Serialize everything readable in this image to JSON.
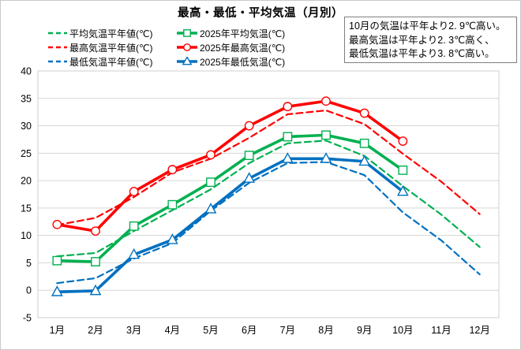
{
  "title": "最高・最低・平均気温（月別）",
  "annotation": {
    "line1": "10月の気温は平年より2. 9℃高い。",
    "line2": "最高気温は平年より2. 3℃高く、",
    "line3": "最低気温は平年より3. 8℃高い。"
  },
  "legend": {
    "items": [
      {
        "label": "平均気温平年値(℃)",
        "color": "#00B050",
        "style": "dashed",
        "marker": "none"
      },
      {
        "label": "2025年平均気温(℃)",
        "color": "#00B050",
        "style": "solid",
        "marker": "square"
      },
      {
        "label": "最高気温平年値(℃)",
        "color": "#FF0000",
        "style": "dashed",
        "marker": "none"
      },
      {
        "label": "2025年最高気温(℃)",
        "color": "#FF0000",
        "style": "solid",
        "marker": "circle"
      },
      {
        "label": "最低気温平年値(℃)",
        "color": "#0070C0",
        "style": "dashed",
        "marker": "none"
      },
      {
        "label": "2025年最低気温(℃)",
        "color": "#0070C0",
        "style": "solid",
        "marker": "triangle"
      }
    ]
  },
  "colors": {
    "average": "#00B050",
    "maximum": "#FF0000",
    "minimum": "#0070C0",
    "gridline": "#d6d6d6"
  },
  "chart_data": {
    "type": "line",
    "title": "最高・最低・平均気温（月別）",
    "categories": [
      "1月",
      "2月",
      "3月",
      "4月",
      "5月",
      "6月",
      "7月",
      "8月",
      "9月",
      "10月",
      "11月",
      "12月"
    ],
    "xlabel": "",
    "ylabel": "",
    "ylim": [
      -5,
      40
    ],
    "y_ticks": [
      40,
      35,
      30,
      25,
      20,
      15,
      10,
      5,
      0,
      -5
    ],
    "grid": "horizontal",
    "legend_position": "top",
    "series": [
      {
        "name": "平均気温平年値(℃)",
        "color": "#00B050",
        "style": "dashed",
        "marker": "none",
        "values": [
          6.2,
          6.8,
          10.8,
          14.6,
          18.4,
          23.2,
          26.8,
          27.3,
          24.5,
          19.0,
          13.8,
          7.9
        ]
      },
      {
        "name": "最高気温平年値(℃)",
        "color": "#FF0000",
        "style": "dashed",
        "marker": "none",
        "values": [
          11.9,
          13.2,
          17.0,
          21.5,
          24.0,
          27.8,
          32.1,
          32.8,
          30.3,
          24.9,
          19.8,
          13.9
        ]
      },
      {
        "name": "最低気温平年値(℃)",
        "color": "#0070C0",
        "style": "dashed",
        "marker": "none",
        "values": [
          1.3,
          2.2,
          5.8,
          8.6,
          14.5,
          19.6,
          23.2,
          23.4,
          21.0,
          14.2,
          9.1,
          2.9
        ]
      },
      {
        "name": "2025年平均気温(℃)",
        "color": "#00B050",
        "style": "solid",
        "marker": "square",
        "values": [
          5.4,
          5.2,
          11.7,
          15.6,
          19.7,
          24.6,
          28.0,
          28.3,
          26.8,
          21.9,
          null,
          null
        ]
      },
      {
        "name": "2025年最高気温(℃)",
        "color": "#FF0000",
        "style": "solid",
        "marker": "circle",
        "values": [
          12.0,
          10.8,
          18.0,
          22.0,
          24.7,
          30.0,
          33.5,
          34.5,
          32.3,
          27.2,
          null,
          null
        ]
      },
      {
        "name": "2025年最低気温(℃)",
        "color": "#0070C0",
        "style": "solid",
        "marker": "triangle",
        "values": [
          -0.3,
          -0.1,
          6.5,
          9.2,
          14.8,
          20.4,
          24.0,
          24.0,
          23.5,
          18.0,
          null,
          null
        ]
      }
    ]
  }
}
